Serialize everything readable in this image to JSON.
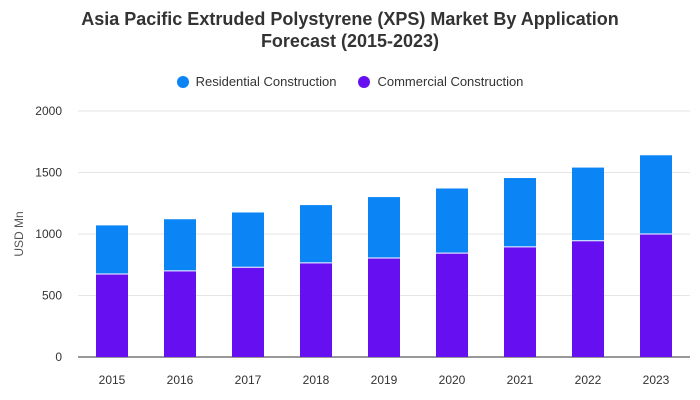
{
  "chart_data": {
    "type": "bar",
    "stacked": true,
    "title_line1": "Asia Pacific Extruded Polystyrene (XPS) Market By Application",
    "title_line2": "Forecast (2015-2023)",
    "ylabel": "USD Mn",
    "xlabel": "",
    "categories": [
      "2015",
      "2016",
      "2017",
      "2018",
      "2019",
      "2020",
      "2021",
      "2022",
      "2023"
    ],
    "series": [
      {
        "name": "Commercial Construction",
        "color": "#6610f2",
        "values": [
          675,
          700,
          730,
          765,
          805,
          845,
          895,
          945,
          1000
        ]
      },
      {
        "name": "Residential Construction",
        "color": "#0b84f6",
        "values": [
          395,
          420,
          445,
          470,
          495,
          525,
          560,
          595,
          640
        ]
      }
    ],
    "ylim": [
      0,
      2000
    ],
    "yticks": [
      "0",
      "500",
      "1000",
      "1500",
      "2000"
    ],
    "grid": true,
    "legend_position": "top-center",
    "legend_order": [
      "Residential Construction",
      "Commercial Construction"
    ]
  }
}
